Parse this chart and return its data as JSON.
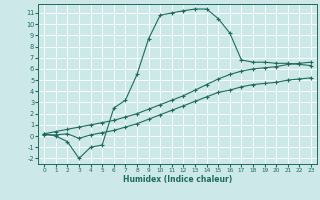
{
  "xlabel": "Humidex (Indice chaleur)",
  "bg_color": "#cde8e8",
  "grid_color": "#ffffff",
  "line_color": "#1e6b5e",
  "xlim": [
    -0.5,
    23.5
  ],
  "ylim": [
    -2.5,
    11.8
  ],
  "xticks": [
    0,
    1,
    2,
    3,
    4,
    5,
    6,
    7,
    8,
    9,
    10,
    11,
    12,
    13,
    14,
    15,
    16,
    17,
    18,
    19,
    20,
    21,
    22,
    23
  ],
  "yticks": [
    -2,
    -1,
    0,
    1,
    2,
    3,
    4,
    5,
    6,
    7,
    8,
    9,
    10,
    11
  ],
  "line1_x": [
    0,
    1,
    2,
    3,
    4,
    5,
    6,
    7,
    8,
    9,
    10,
    11,
    12,
    13,
    14,
    15,
    16,
    17,
    18,
    19,
    20,
    21,
    22,
    23
  ],
  "line1_y": [
    0.2,
    0.0,
    -0.5,
    -2.0,
    -1.0,
    -0.8,
    2.5,
    3.2,
    5.5,
    8.7,
    10.8,
    11.0,
    11.2,
    11.35,
    11.35,
    10.5,
    9.2,
    6.8,
    6.6,
    6.6,
    6.5,
    6.5,
    6.4,
    6.3
  ],
  "line2_x": [
    0,
    1,
    2,
    3,
    4,
    5,
    6,
    7,
    8,
    9,
    10,
    11,
    12,
    13,
    14,
    15,
    16,
    17,
    18,
    19,
    20,
    21,
    22,
    23
  ],
  "line2_y": [
    0.2,
    0.4,
    0.6,
    0.8,
    1.0,
    1.2,
    1.4,
    1.7,
    2.0,
    2.4,
    2.8,
    3.2,
    3.6,
    4.1,
    4.6,
    5.1,
    5.5,
    5.8,
    6.0,
    6.1,
    6.2,
    6.4,
    6.5,
    6.6
  ],
  "line3_x": [
    0,
    1,
    2,
    3,
    4,
    5,
    6,
    7,
    8,
    9,
    10,
    11,
    12,
    13,
    14,
    15,
    16,
    17,
    18,
    19,
    20,
    21,
    22,
    23
  ],
  "line3_y": [
    0.1,
    0.1,
    0.2,
    -0.2,
    0.1,
    0.3,
    0.5,
    0.8,
    1.1,
    1.5,
    1.9,
    2.3,
    2.7,
    3.1,
    3.5,
    3.9,
    4.1,
    4.4,
    4.6,
    4.7,
    4.8,
    5.0,
    5.1,
    5.2
  ]
}
